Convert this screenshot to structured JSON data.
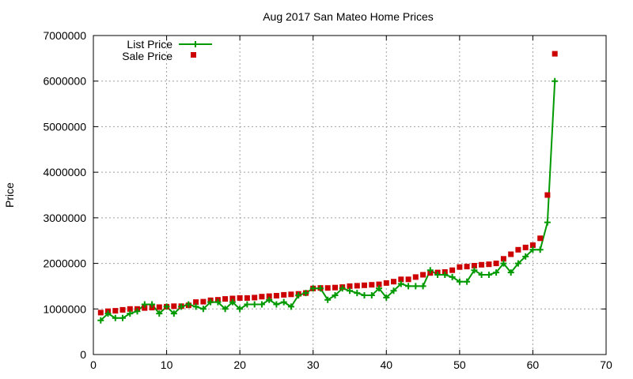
{
  "chart_data": {
    "type": "line",
    "title": "Aug 2017 San Mateo Home Prices",
    "xlabel": "",
    "ylabel": "Price",
    "xlim": [
      0,
      70
    ],
    "ylim": [
      0,
      7000000
    ],
    "xticks": [
      0,
      10,
      20,
      30,
      40,
      50,
      60,
      70
    ],
    "yticks": [
      0,
      1000000,
      2000000,
      3000000,
      4000000,
      5000000,
      6000000,
      7000000
    ],
    "grid": true,
    "legend_position": "top-left",
    "series": [
      {
        "name": "List Price",
        "style": "line-with-plus-markers",
        "color": "#009900",
        "x": [
          1,
          2,
          3,
          4,
          5,
          6,
          7,
          8,
          9,
          10,
          11,
          12,
          13,
          14,
          15,
          16,
          17,
          18,
          19,
          20,
          21,
          22,
          23,
          24,
          25,
          26,
          27,
          28,
          29,
          30,
          31,
          32,
          33,
          34,
          35,
          36,
          37,
          38,
          39,
          40,
          41,
          42,
          43,
          44,
          45,
          46,
          47,
          48,
          49,
          50,
          51,
          52,
          53,
          54,
          55,
          56,
          57,
          58,
          59,
          60,
          61,
          62,
          63
        ],
        "values": [
          750000,
          900000,
          800000,
          800000,
          900000,
          950000,
          1100000,
          1100000,
          900000,
          1050000,
          900000,
          1050000,
          1100000,
          1050000,
          1000000,
          1150000,
          1150000,
          1000000,
          1150000,
          1000000,
          1100000,
          1100000,
          1100000,
          1200000,
          1100000,
          1150000,
          1050000,
          1300000,
          1350000,
          1450000,
          1450000,
          1200000,
          1300000,
          1450000,
          1400000,
          1350000,
          1300000,
          1300000,
          1450000,
          1250000,
          1400000,
          1550000,
          1500000,
          1500000,
          1500000,
          1850000,
          1750000,
          1750000,
          1700000,
          1600000,
          1600000,
          1850000,
          1750000,
          1750000,
          1800000,
          2000000,
          1800000,
          2000000,
          2150000,
          2300000,
          2300000,
          2900000,
          6000000
        ]
      },
      {
        "name": "Sale Price",
        "style": "square-markers",
        "color": "#cc0000",
        "x": [
          1,
          2,
          3,
          4,
          5,
          6,
          7,
          8,
          9,
          10,
          11,
          12,
          13,
          14,
          15,
          16,
          17,
          18,
          19,
          20,
          21,
          22,
          23,
          24,
          25,
          26,
          27,
          28,
          29,
          30,
          31,
          32,
          33,
          34,
          35,
          36,
          37,
          38,
          39,
          40,
          41,
          42,
          43,
          44,
          45,
          46,
          47,
          48,
          49,
          50,
          51,
          52,
          53,
          54,
          55,
          56,
          57,
          58,
          59,
          60,
          61,
          62,
          63
        ],
        "values": [
          920000,
          950000,
          960000,
          980000,
          1000000,
          1000000,
          1020000,
          1030000,
          1040000,
          1050000,
          1060000,
          1060000,
          1080000,
          1150000,
          1160000,
          1190000,
          1200000,
          1220000,
          1230000,
          1240000,
          1240000,
          1250000,
          1270000,
          1280000,
          1290000,
          1310000,
          1320000,
          1330000,
          1350000,
          1450000,
          1460000,
          1460000,
          1470000,
          1480000,
          1500000,
          1510000,
          1520000,
          1530000,
          1540000,
          1570000,
          1600000,
          1650000,
          1650000,
          1700000,
          1750000,
          1790000,
          1800000,
          1810000,
          1850000,
          1920000,
          1930000,
          1950000,
          1970000,
          1980000,
          2000000,
          2100000,
          2200000,
          2300000,
          2350000,
          2400000,
          2550000,
          3500000,
          6600000
        ]
      }
    ]
  }
}
